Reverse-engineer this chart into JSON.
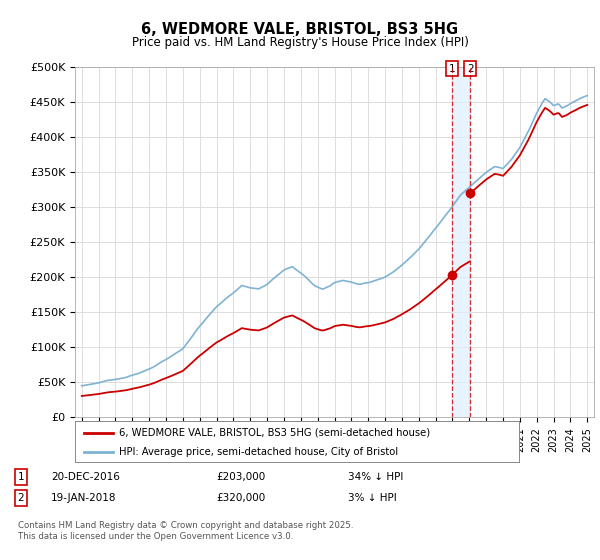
{
  "title": "6, WEDMORE VALE, BRISTOL, BS3 5HG",
  "subtitle": "Price paid vs. HM Land Registry's House Price Index (HPI)",
  "ylabel_ticks": [
    "£0",
    "£50K",
    "£100K",
    "£150K",
    "£200K",
    "£250K",
    "£300K",
    "£350K",
    "£400K",
    "£450K",
    "£500K"
  ],
  "ytick_values": [
    0,
    50000,
    100000,
    150000,
    200000,
    250000,
    300000,
    350000,
    400000,
    450000,
    500000
  ],
  "xlim_start": 1994.6,
  "xlim_end": 2025.4,
  "ylim_min": 0,
  "ylim_max": 500000,
  "red_line_color": "#cc0000",
  "blue_line_color": "#7fb3d3",
  "shade_color": "#ddeeff",
  "marker1_date": 2016.97,
  "marker2_date": 2018.05,
  "marker1_price": 203000,
  "marker2_price": 320000,
  "legend_label_red": "6, WEDMORE VALE, BRISTOL, BS3 5HG (semi-detached house)",
  "legend_label_blue": "HPI: Average price, semi-detached house, City of Bristol",
  "footer": "Contains HM Land Registry data © Crown copyright and database right 2025.\nThis data is licensed under the Open Government Licence v3.0.",
  "background_color": "#ffffff",
  "grid_color": "#dddddd"
}
